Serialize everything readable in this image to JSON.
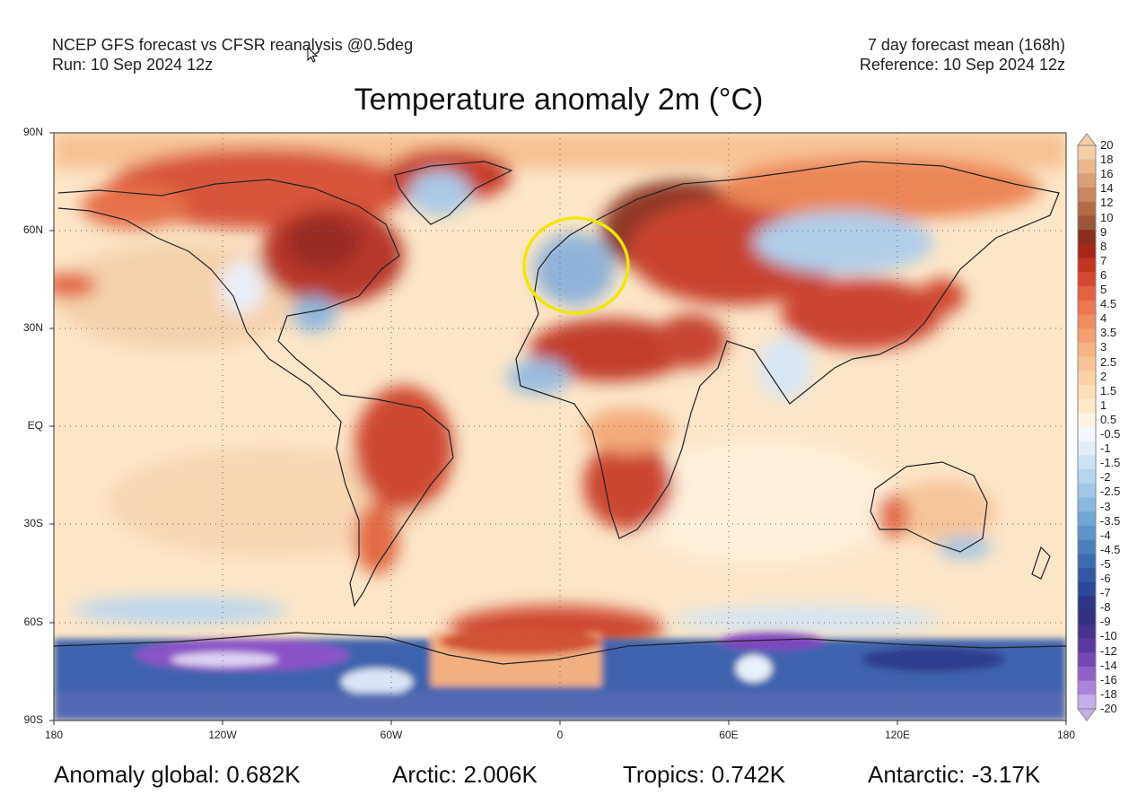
{
  "header": {
    "line1_left": "NCEP GFS forecast vs CFSR reanalysis @0.5deg",
    "line2_left": "Run: 10 Sep 2024 12z",
    "line1_right": "7 day forecast mean (168h)",
    "line2_right": "Reference: 10 Sep 2024 12z"
  },
  "title": "Temperature anomaly 2m (°C)",
  "axes": {
    "lat_labels": [
      "90N",
      "60N",
      "30N",
      "EQ",
      "30S",
      "60S",
      "90S"
    ],
    "lon_labels": [
      "180",
      "120W",
      "60W",
      "0",
      "60E",
      "120E",
      "180"
    ]
  },
  "colorbar": {
    "labels": [
      "20",
      "18",
      "16",
      "14",
      "12",
      "10",
      "9",
      "8",
      "7",
      "6",
      "5",
      "4.5",
      "4",
      "3.5",
      "3",
      "2.5",
      "2",
      "1.5",
      "1",
      "0.5",
      "-0.5",
      "-1",
      "-1.5",
      "-2",
      "-2.5",
      "-3",
      "-3.5",
      "-4",
      "-4.5",
      "-5",
      "-6",
      "-7",
      "-8",
      "-9",
      "-10",
      "-12",
      "-14",
      "-16",
      "-18",
      "-20"
    ],
    "colors": [
      "#f2cfa6",
      "#e8b78a",
      "#d99f78",
      "#c78560",
      "#b26a48",
      "#9c5536",
      "#8a2d1e",
      "#a8261a",
      "#c23523",
      "#d84a30",
      "#e4623e",
      "#eb7650",
      "#f08c5e",
      "#f4a070",
      "#f6b383",
      "#f8c394",
      "#f9d3a6",
      "#fadfb8",
      "#fbe9c9",
      "#fdf4e4",
      "#f4f8fc",
      "#e2eef7",
      "#cde2f2",
      "#b6d5ec",
      "#a0c7e5",
      "#89b7dd",
      "#74a6d4",
      "#5f94c9",
      "#4b80bd",
      "#3c6bb1",
      "#3457a6",
      "#2e4699",
      "#2c3589",
      "#33307f",
      "#45338d",
      "#5a3aa0",
      "#7447b5",
      "#9062c9",
      "#ab84db",
      "#c6aee8"
    ]
  },
  "annotation": {
    "type": "circle",
    "color": "#f0e800",
    "region": "Europe"
  },
  "stats": {
    "global": "Anomaly global: 0.682K",
    "arctic": "Arctic: 2.006K",
    "tropics": "Tropics: 0.742K",
    "antarctic": "Antarctic: -3.17K"
  }
}
